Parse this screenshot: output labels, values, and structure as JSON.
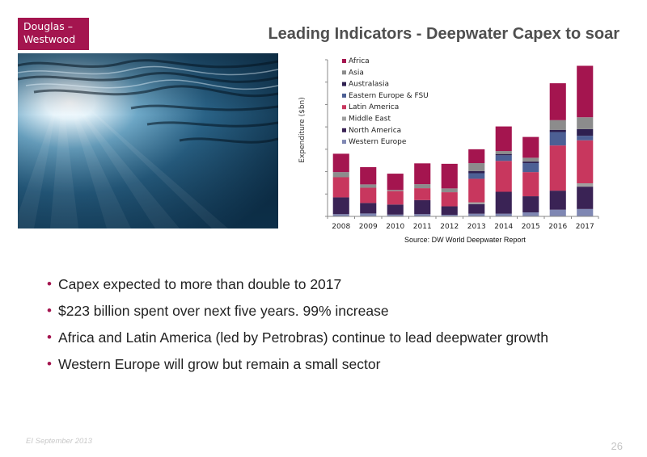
{
  "logo": {
    "line1": "Douglas –",
    "line2": "Westwood"
  },
  "title": "Leading Indicators - Deepwater Capex to soar",
  "photo": {
    "icon": "underwater-light-rays"
  },
  "source": "Source: DW World Deepwater Report",
  "bullets": [
    "Capex expected to more than double to 2017",
    "$223 billion spent over next five years. 99% increase",
    "Africa and Latin America (led by Petrobras) continue to lead deepwater growth",
    "Western Europe will grow but remain a small sector"
  ],
  "footer": {
    "left": "EI September 2013",
    "page": "26"
  },
  "colors": {
    "accent": "#a4154f"
  },
  "chart_data": {
    "type": "bar",
    "stacked": true,
    "title": "",
    "xlabel": "",
    "ylabel": "Expenditure ($bn)",
    "ylim": [
      0,
      70
    ],
    "grid": false,
    "y_ticks_labeled": false,
    "legend_position": "top-left",
    "categories": [
      "2008",
      "2009",
      "2010",
      "2011",
      "2012",
      "2013",
      "2014",
      "2015",
      "2016",
      "2017"
    ],
    "series": [
      {
        "name": "Western Europe",
        "color": "#7f87b3",
        "values": [
          1.0,
          1.3,
          0.8,
          1.0,
          0.7,
          1.2,
          1.2,
          1.8,
          3.0,
          3.3
        ]
      },
      {
        "name": "North America",
        "color": "#3a2355",
        "values": [
          7.5,
          4.7,
          4.5,
          6.3,
          3.8,
          4.3,
          9.8,
          7.2,
          8.5,
          10.0
        ]
      },
      {
        "name": "Middle East",
        "color": "#a0a0a0",
        "values": [
          0.0,
          0.0,
          0.0,
          0.0,
          0.0,
          0.8,
          0.0,
          0.0,
          0.0,
          1.5
        ]
      },
      {
        "name": "Latin America",
        "color": "#c8375e",
        "values": [
          9.0,
          6.8,
          6.0,
          5.3,
          6.3,
          10.5,
          13.8,
          10.8,
          20.2,
          19.2
        ]
      },
      {
        "name": "Eastern Europe & FSU",
        "color": "#4c5f94",
        "values": [
          0.0,
          0.0,
          0.0,
          0.0,
          0.0,
          2.5,
          2.5,
          4.0,
          6.0,
          2.0
        ]
      },
      {
        "name": "Australasia",
        "color": "#2e2050",
        "values": [
          0.0,
          0.0,
          0.0,
          0.0,
          0.0,
          1.0,
          0.6,
          0.7,
          1.0,
          3.0
        ]
      },
      {
        "name": "Asia",
        "color": "#8c8c8c",
        "values": [
          2.3,
          1.5,
          0.5,
          1.8,
          1.7,
          3.5,
          1.3,
          1.7,
          4.3,
          5.3
        ]
      },
      {
        "name": "Africa",
        "color": "#a4154f",
        "values": [
          8.2,
          7.7,
          7.3,
          9.3,
          11.0,
          6.2,
          11.0,
          9.3,
          16.5,
          23.0
        ]
      }
    ]
  }
}
